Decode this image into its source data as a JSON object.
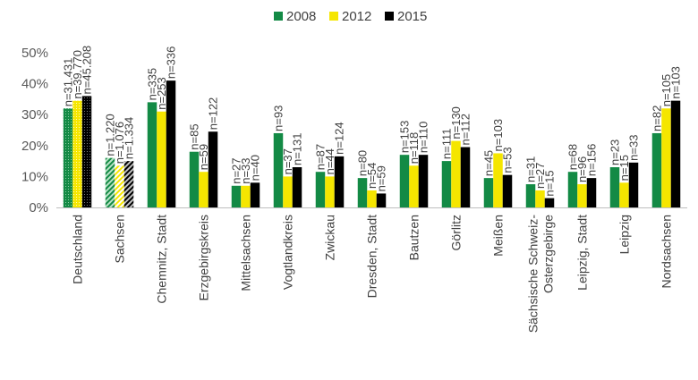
{
  "chart_data": {
    "type": "bar",
    "ylim": [
      0,
      50
    ],
    "yticks": [
      "0%",
      "10%",
      "20%",
      "30%",
      "40%",
      "50%"
    ],
    "grid": false,
    "legend_position": "top",
    "categories": [
      "Deutschland",
      "Sachsen",
      "Chemnitz, Stadt",
      "Erzgebirgskreis",
      "Mittelsachsen",
      "Vogtlandkreis",
      "Zwickau",
      "Dresden, Stadt",
      "Bautzen",
      "Görlitz",
      "Meißen",
      "Sächsische Schweiz-Osterzgebirge",
      "Leipzig, Stadt",
      "Leipzig",
      "Nordsachsen"
    ],
    "category_lines": [
      [
        "Deutschland"
      ],
      [
        "Sachsen"
      ],
      [
        "Chemnitz, Stadt"
      ],
      [
        "Erzgebirgskreis"
      ],
      [
        "Mittelsachsen"
      ],
      [
        "Vogtlandkreis"
      ],
      [
        "Zwickau"
      ],
      [
        "Dresden, Stadt"
      ],
      [
        "Bautzen"
      ],
      [
        "Görlitz"
      ],
      [
        "Meißen"
      ],
      [
        "Sächsische Schweiz-",
        "Osterzgebirge"
      ],
      [
        "Leipzig, Stadt"
      ],
      [
        "Leipzig"
      ],
      [
        "Nordsachsen"
      ]
    ],
    "series": [
      {
        "name": "2008",
        "color": "#138a45",
        "values": [
          32,
          16,
          34,
          18,
          7,
          24,
          11.5,
          9.5,
          17,
          15,
          9.5,
          7.5,
          11.5,
          13,
          24
        ],
        "labels": [
          "n=31.431",
          "n=1.220",
          "n=335",
          "n=85",
          "n=27",
          "n=93",
          "n=87",
          "n=80",
          "n=153",
          "n=111",
          "n=45",
          "n=31",
          "n=68",
          "n=23",
          "n=82"
        ]
      },
      {
        "name": "2012",
        "color": "#f5e600",
        "values": [
          34.5,
          13.5,
          31,
          11.5,
          7,
          10,
          10,
          5.5,
          13.5,
          21.5,
          17.5,
          5.5,
          7.5,
          8,
          32
        ],
        "labels": [
          "n=39.770",
          "n=1.076",
          "n=253",
          "n=59",
          "n=33",
          "n=37",
          "n=44",
          "n=54",
          "n=118",
          "n=130",
          "n=103",
          "n=27",
          "n=96",
          "n=15",
          "n=105"
        ]
      },
      {
        "name": "2015",
        "color": "#000000",
        "values": [
          36,
          15,
          41,
          24.5,
          8,
          13,
          16.5,
          4.5,
          17,
          19.5,
          10.5,
          3,
          9.5,
          14.5,
          34.5
        ],
        "labels": [
          "n=45.208",
          "n=1.334",
          "n=336",
          "n=122",
          "n=40",
          "n=131",
          "n=124",
          "n=59",
          "n=110",
          "n=112",
          "n=53",
          "n=15",
          "n=156",
          "n=33",
          "n=103"
        ]
      }
    ]
  }
}
